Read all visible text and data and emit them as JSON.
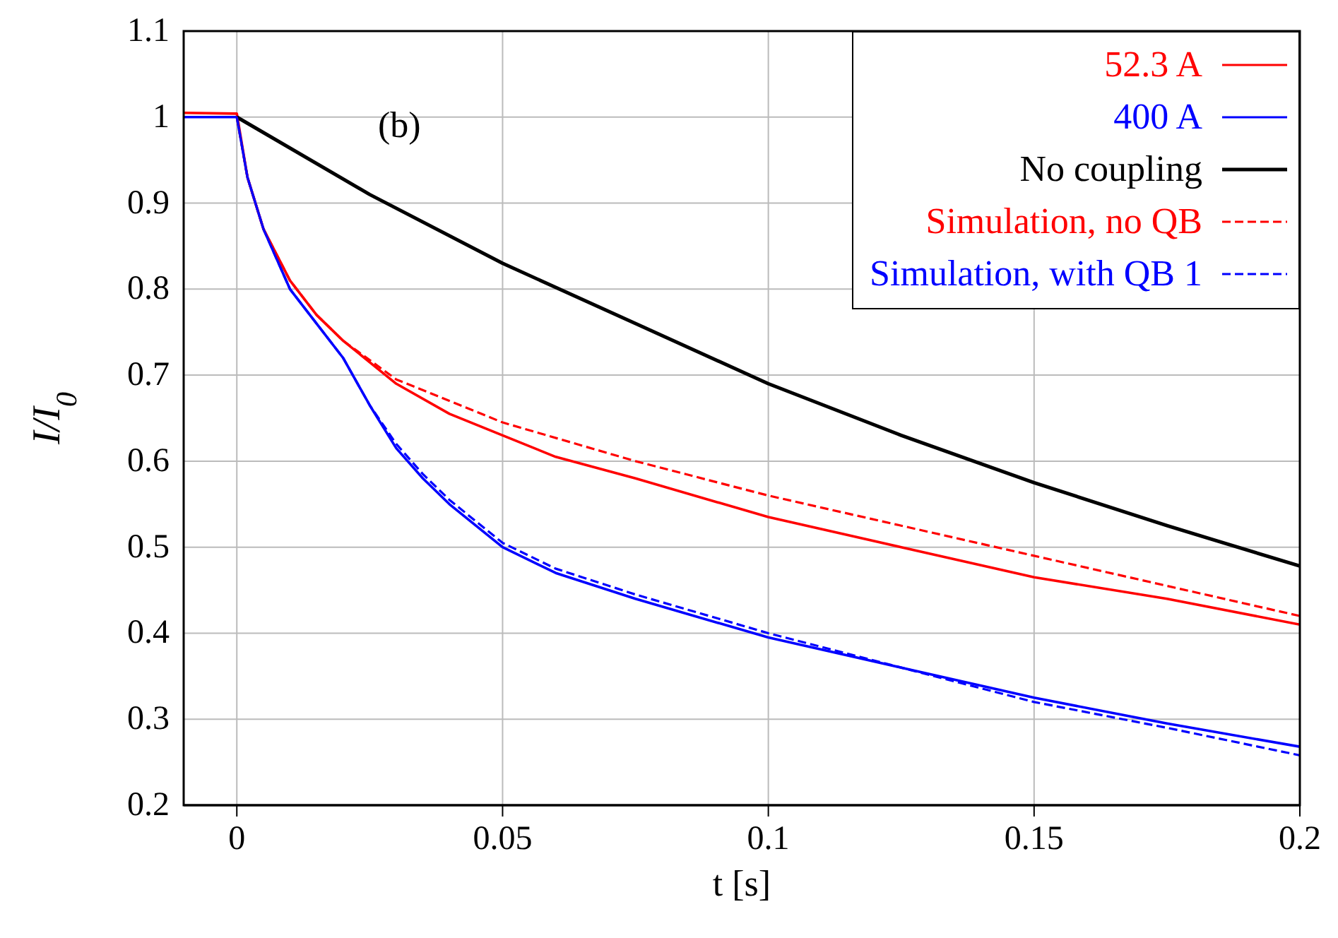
{
  "chart_data": {
    "type": "line",
    "xlabel": "t [s]",
    "ylabel": "I/I$_{0}$",
    "annotations": [
      "(b)"
    ],
    "xlim": [
      -0.01,
      0.2
    ],
    "xticks": [
      0,
      0.05,
      0.1,
      0.15,
      0.2
    ],
    "ylim": [
      0.2,
      1.1
    ],
    "yticks": [
      0.2,
      0.3,
      0.4,
      0.5,
      0.6,
      0.7,
      0.8,
      0.9,
      1,
      1.1
    ],
    "grid": true,
    "legend": "top right",
    "marker": "none",
    "series": [
      {
        "name": "52.3 A",
        "color": "#ff0000",
        "line_style": "solid",
        "x": [
          -0.01,
          0,
          0.002,
          0.005,
          0.01,
          0.015,
          0.02,
          0.025,
          0.03,
          0.04,
          0.05,
          0.06,
          0.075,
          0.1,
          0.125,
          0.15,
          0.175,
          0.2
        ],
        "values": [
          1.005,
          1.004,
          0.93,
          0.87,
          0.81,
          0.77,
          0.74,
          0.715,
          0.69,
          0.655,
          0.63,
          0.605,
          0.58,
          0.535,
          0.5,
          0.465,
          0.44,
          0.41
        ]
      },
      {
        "name": "400 A",
        "color": "#0000ff",
        "line_style": "solid",
        "x": [
          -0.01,
          0,
          0.002,
          0.005,
          0.01,
          0.015,
          0.02,
          0.025,
          0.03,
          0.035,
          0.04,
          0.05,
          0.06,
          0.075,
          0.1,
          0.125,
          0.15,
          0.175,
          0.2
        ],
        "values": [
          1,
          1,
          0.93,
          0.87,
          0.8,
          0.76,
          0.72,
          0.665,
          0.615,
          0.58,
          0.55,
          0.5,
          0.47,
          0.44,
          0.395,
          0.36,
          0.325,
          0.295,
          0.268
        ]
      },
      {
        "name": "No coupling",
        "color": "#000000",
        "line_style": "solid",
        "x": [
          0,
          0.025,
          0.05,
          0.075,
          0.1,
          0.125,
          0.15,
          0.175,
          0.2
        ],
        "values": [
          1,
          0.91,
          0.83,
          0.76,
          0.69,
          0.63,
          0.575,
          0.525,
          0.478
        ]
      },
      {
        "name": "Simulation, no QB",
        "color": "#ff0000",
        "line_style": "dashed",
        "x": [
          0,
          0.002,
          0.005,
          0.01,
          0.015,
          0.02,
          0.03,
          0.05,
          0.075,
          0.1,
          0.125,
          0.15,
          0.175,
          0.2
        ],
        "values": [
          1,
          0.93,
          0.87,
          0.81,
          0.77,
          0.74,
          0.695,
          0.645,
          0.6,
          0.56,
          0.525,
          0.49,
          0.455,
          0.42
        ]
      },
      {
        "name": "Simulation, with QB 1",
        "color": "#0000ff",
        "line_style": "dashed",
        "x": [
          0,
          0.002,
          0.005,
          0.01,
          0.015,
          0.02,
          0.025,
          0.03,
          0.035,
          0.04,
          0.05,
          0.06,
          0.075,
          0.1,
          0.125,
          0.15,
          0.175,
          0.2
        ],
        "values": [
          1,
          0.93,
          0.87,
          0.8,
          0.76,
          0.72,
          0.665,
          0.62,
          0.585,
          0.555,
          0.505,
          0.475,
          0.445,
          0.4,
          0.36,
          0.32,
          0.29,
          0.258
        ]
      }
    ]
  }
}
